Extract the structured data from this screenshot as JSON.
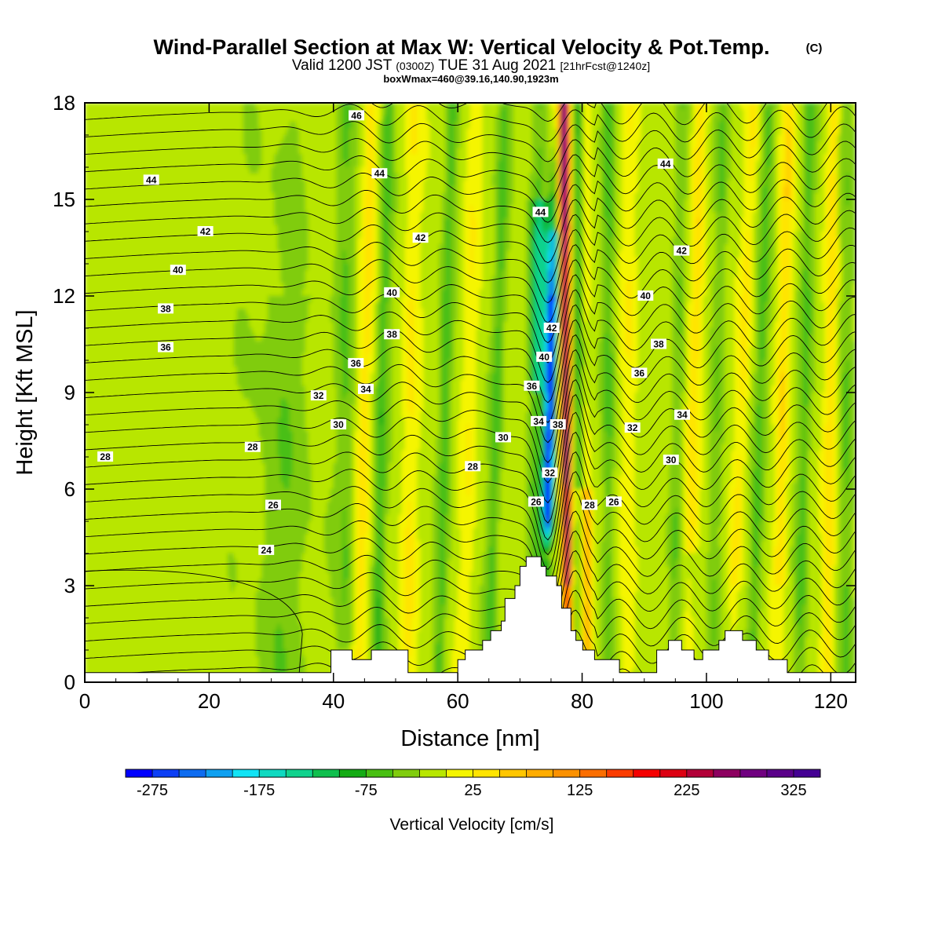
{
  "title": {
    "main": "Wind-Parallel Section at Max W: Vertical Velocity & Pot.Temp.",
    "copyright": "(C)",
    "valid_prefix": "Valid 1200 JST",
    "valid_utc": "(0300Z)",
    "valid_date": "TUE 31 Aug 2021",
    "forecast": "[21hrFcst@1240z]",
    "box": "boxWmax=460@39.16,140.90,1923m"
  },
  "chart_data": {
    "type": "heatmap",
    "xlabel": "Distance [nm]",
    "ylabel": "Height [Kft MSL]",
    "xlim": [
      0,
      124
    ],
    "ylim": [
      0,
      18
    ],
    "x_ticks": [
      0,
      20,
      40,
      60,
      80,
      100,
      120
    ],
    "y_ticks": [
      0,
      3,
      6,
      9,
      12,
      15,
      18
    ],
    "x_tick_labels": [
      "0",
      "20",
      "40",
      "60",
      "80",
      "100",
      "120"
    ],
    "y_tick_labels": [
      "0",
      "3",
      "6",
      "9",
      "12",
      "15",
      "18"
    ],
    "colorbar": {
      "label": "Vertical Velocity [cm/s]",
      "min": -300,
      "max": 350,
      "step": 25,
      "tick_values": [
        -275,
        -175,
        -75,
        25,
        125,
        225,
        325
      ],
      "tick_labels": [
        "-275",
        "-175",
        "-75",
        "25",
        "125",
        "225",
        "325"
      ],
      "colors": [
        "#0000ff",
        "#0d3ff5",
        "#0e6cf0",
        "#0fa0f0",
        "#11e3f5",
        "#0fd9c0",
        "#10d28d",
        "#0fbf4e",
        "#14ab14",
        "#48bf12",
        "#80cc0e",
        "#b8e600",
        "#f5f500",
        "#ffe400",
        "#ffc600",
        "#ffac00",
        "#fb9100",
        "#fb6e00",
        "#fb3c00",
        "#f50000",
        "#dc0012",
        "#b20038",
        "#8d0060",
        "#700080",
        "#5a0089",
        "#440093"
      ]
    },
    "contour_labels": [
      {
        "x": 3.3,
        "y": 7.0,
        "text": "28"
      },
      {
        "x": 27.0,
        "y": 7.3,
        "text": "28"
      },
      {
        "x": 30.3,
        "y": 5.5,
        "text": "26"
      },
      {
        "x": 29.2,
        "y": 4.1,
        "text": "24"
      },
      {
        "x": 10.7,
        "y": 15.6,
        "text": "44"
      },
      {
        "x": 19.4,
        "y": 14.0,
        "text": "42"
      },
      {
        "x": 15.0,
        "y": 12.8,
        "text": "40"
      },
      {
        "x": 13.0,
        "y": 11.6,
        "text": "38"
      },
      {
        "x": 13.0,
        "y": 10.4,
        "text": "36"
      },
      {
        "x": 37.6,
        "y": 8.9,
        "text": "32"
      },
      {
        "x": 40.8,
        "y": 8.0,
        "text": "30"
      },
      {
        "x": 43.7,
        "y": 17.6,
        "text": "46"
      },
      {
        "x": 47.4,
        "y": 15.8,
        "text": "44"
      },
      {
        "x": 54.0,
        "y": 13.8,
        "text": "42"
      },
      {
        "x": 49.4,
        "y": 12.1,
        "text": "40"
      },
      {
        "x": 49.4,
        "y": 10.8,
        "text": "38"
      },
      {
        "x": 43.6,
        "y": 9.9,
        "text": "36"
      },
      {
        "x": 45.2,
        "y": 9.1,
        "text": "34"
      },
      {
        "x": 67.3,
        "y": 7.6,
        "text": "30"
      },
      {
        "x": 62.4,
        "y": 6.7,
        "text": "28"
      },
      {
        "x": 72.6,
        "y": 5.6,
        "text": "26"
      },
      {
        "x": 73.3,
        "y": 14.6,
        "text": "44"
      },
      {
        "x": 75.1,
        "y": 11.0,
        "text": "42"
      },
      {
        "x": 73.9,
        "y": 10.1,
        "text": "40"
      },
      {
        "x": 71.9,
        "y": 9.2,
        "text": "36"
      },
      {
        "x": 73.0,
        "y": 8.1,
        "text": "34"
      },
      {
        "x": 76.1,
        "y": 8.0,
        "text": "38"
      },
      {
        "x": 74.8,
        "y": 6.5,
        "text": "32"
      },
      {
        "x": 81.2,
        "y": 5.5,
        "text": "28"
      },
      {
        "x": 85.1,
        "y": 5.6,
        "text": "26"
      },
      {
        "x": 93.4,
        "y": 16.1,
        "text": "44"
      },
      {
        "x": 96.0,
        "y": 13.4,
        "text": "42"
      },
      {
        "x": 90.2,
        "y": 12.0,
        "text": "40"
      },
      {
        "x": 92.3,
        "y": 10.5,
        "text": "38"
      },
      {
        "x": 89.2,
        "y": 9.6,
        "text": "36"
      },
      {
        "x": 96.1,
        "y": 8.3,
        "text": "34"
      },
      {
        "x": 88.1,
        "y": 7.9,
        "text": "32"
      },
      {
        "x": 94.3,
        "y": 6.9,
        "text": "30"
      }
    ],
    "terrain_profile": [
      [
        0,
        0.3
      ],
      [
        39.6,
        0.3
      ],
      [
        39.6,
        1.0
      ],
      [
        43.0,
        1.0
      ],
      [
        43.0,
        0.7
      ],
      [
        46.1,
        0.7
      ],
      [
        46.1,
        1.0
      ],
      [
        52.0,
        1.0
      ],
      [
        52.0,
        0.3
      ],
      [
        60.0,
        0.3
      ],
      [
        60.0,
        0.7
      ],
      [
        61.2,
        0.7
      ],
      [
        61.2,
        1.0
      ],
      [
        64.0,
        1.0
      ],
      [
        64.0,
        1.3
      ],
      [
        65.3,
        1.3
      ],
      [
        65.3,
        1.6
      ],
      [
        67.0,
        1.6
      ],
      [
        67.0,
        1.9
      ],
      [
        67.6,
        1.9
      ],
      [
        67.6,
        2.6
      ],
      [
        69.2,
        2.6
      ],
      [
        69.2,
        3.0
      ],
      [
        70.0,
        3.0
      ],
      [
        70.0,
        3.6
      ],
      [
        71.0,
        3.6
      ],
      [
        71.0,
        3.9
      ],
      [
        73.4,
        3.9
      ],
      [
        73.4,
        3.6
      ],
      [
        74.2,
        3.6
      ],
      [
        74.2,
        3.3
      ],
      [
        75.9,
        3.3
      ],
      [
        75.9,
        3.0
      ],
      [
        76.7,
        3.0
      ],
      [
        76.7,
        2.3
      ],
      [
        78.2,
        2.3
      ],
      [
        78.2,
        1.6
      ],
      [
        79.0,
        1.6
      ],
      [
        79.0,
        1.3
      ],
      [
        80.1,
        1.3
      ],
      [
        80.1,
        1.0
      ],
      [
        82.0,
        1.0
      ],
      [
        82.0,
        0.7
      ],
      [
        86.0,
        0.7
      ],
      [
        86.0,
        0.3
      ],
      [
        92.0,
        0.3
      ],
      [
        92.0,
        1.0
      ],
      [
        93.9,
        1.0
      ],
      [
        93.9,
        1.3
      ],
      [
        96.0,
        1.3
      ],
      [
        96.0,
        1.0
      ],
      [
        98.0,
        1.0
      ],
      [
        98.0,
        0.7
      ],
      [
        99.4,
        0.7
      ],
      [
        99.4,
        1.0
      ],
      [
        102.0,
        1.0
      ],
      [
        102.0,
        1.3
      ],
      [
        103.0,
        1.3
      ],
      [
        103.0,
        1.6
      ],
      [
        105.8,
        1.6
      ],
      [
        105.8,
        1.3
      ],
      [
        108.0,
        1.3
      ],
      [
        108.0,
        1.0
      ],
      [
        110.0,
        1.0
      ],
      [
        110.0,
        0.7
      ],
      [
        113.0,
        0.7
      ],
      [
        113.0,
        0.3
      ],
      [
        124,
        0.3
      ]
    ]
  }
}
